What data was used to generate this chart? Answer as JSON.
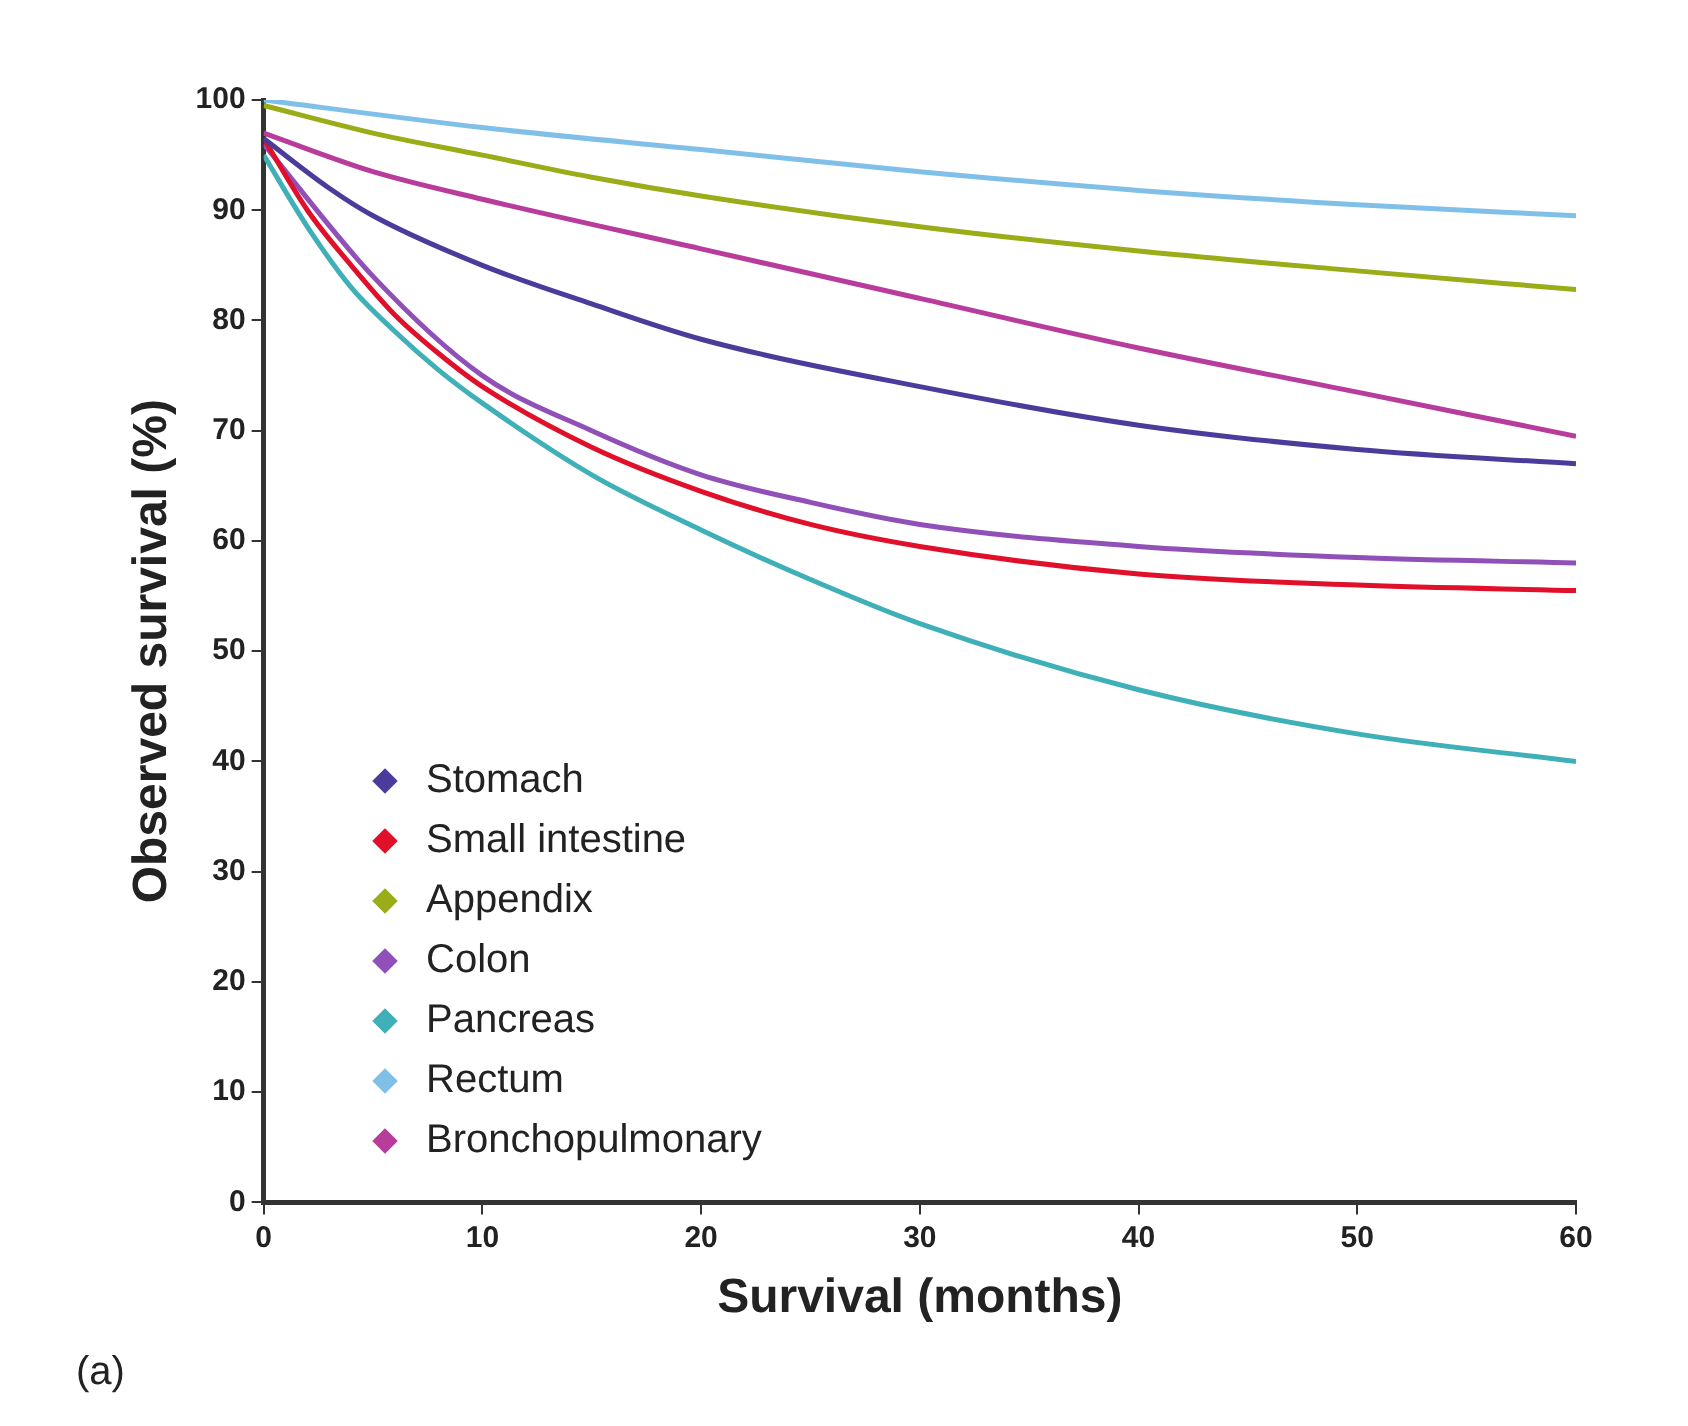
{
  "chart_data": {
    "type": "line",
    "xlabel": "Survival (months)",
    "ylabel": "Observed survival (%)",
    "annotations": [
      "(a)"
    ],
    "xlim": [
      0,
      60
    ],
    "xticks": [
      0,
      10,
      20,
      30,
      40,
      50,
      60
    ],
    "ylim": [
      0,
      100
    ],
    "yticks": [
      0,
      10,
      20,
      30,
      40,
      50,
      60,
      70,
      80,
      90,
      100
    ],
    "grid": false,
    "legend": "bottom left",
    "marker": "none",
    "line_style": "solid",
    "series": [
      {
        "name": "Stomach",
        "color": "#4b3c9c",
        "x": [
          0,
          3,
          5,
          10,
          15,
          20,
          30,
          40,
          50,
          60
        ],
        "values": [
          96.5,
          92,
          89.5,
          85,
          81.5,
          78.3,
          74,
          70.5,
          68.3,
          67
        ]
      },
      {
        "name": "Small intestine",
        "color": "#e0102a",
        "x": [
          0,
          2,
          4,
          6,
          8,
          10,
          15,
          20,
          25,
          30,
          40,
          50,
          60
        ],
        "values": [
          96.5,
          90,
          85,
          80.5,
          77,
          74,
          68.5,
          64.5,
          61.5,
          59.5,
          57,
          56,
          55.5
        ]
      },
      {
        "name": "Appendix",
        "color": "#9aac18",
        "x": [
          0,
          5,
          10,
          15,
          20,
          30,
          40,
          50,
          60
        ],
        "values": [
          99.5,
          97,
          95,
          93,
          91.3,
          88.5,
          86.3,
          84.5,
          82.8
        ]
      },
      {
        "name": "Colon",
        "color": "#9050b8",
        "x": [
          0,
          5,
          10,
          15,
          20,
          25,
          30,
          40,
          50,
          60
        ],
        "values": [
          96,
          84,
          75,
          70,
          66,
          63.5,
          61.5,
          59.5,
          58.5,
          58
        ]
      },
      {
        "name": "Pancreas",
        "color": "#40b0b8",
        "x": [
          0,
          2,
          4,
          6,
          8,
          10,
          15,
          20,
          25,
          30,
          40,
          50,
          60
        ],
        "values": [
          95,
          88.5,
          83,
          79,
          75.5,
          72.5,
          66,
          61,
          56.5,
          52.5,
          46.5,
          42.5,
          40
        ]
      },
      {
        "name": "Rectum",
        "color": "#80c0e8",
        "x": [
          0,
          10,
          20,
          30,
          40,
          50,
          60
        ],
        "values": [
          100,
          97.5,
          95.5,
          93.5,
          91.8,
          90.5,
          89.5
        ]
      },
      {
        "name": "Bronchopulmonary",
        "color": "#b83c9c",
        "x": [
          0,
          5,
          10,
          20,
          30,
          40,
          50,
          60
        ],
        "values": [
          97,
          93.5,
          91,
          86.5,
          82,
          77.5,
          73.5,
          69.5
        ]
      }
    ]
  }
}
